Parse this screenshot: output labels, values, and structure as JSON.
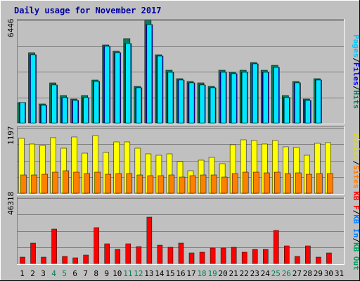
{
  "chart_data": {
    "type": "bar",
    "title": "Daily usage for November 2017",
    "categories": [
      "1",
      "2",
      "3",
      "4",
      "5",
      "6",
      "7",
      "8",
      "9",
      "10",
      "11",
      "12",
      "13",
      "14",
      "15",
      "16",
      "17",
      "18",
      "19",
      "20",
      "21",
      "22",
      "23",
      "24",
      "25",
      "26",
      "27",
      "28",
      "29",
      "30",
      "31"
    ],
    "weekend_categories": [
      "4",
      "5",
      "11",
      "12",
      "18",
      "19",
      "25",
      "26"
    ],
    "panels": [
      {
        "name": "top",
        "max_label": "6446",
        "ylim": [
          0,
          6446
        ],
        "legend": [
          "Pages",
          "Files",
          "Hits"
        ],
        "series": [
          {
            "name": "Hits",
            "color": "#00805c",
            "values": [
              1300,
              4400,
              1200,
              2500,
              1700,
              1500,
              1700,
              2700,
              4900,
              4500,
              5300,
              2300,
              6446,
              4300,
              3300,
              2800,
              2600,
              2500,
              2300,
              3300,
              3200,
              3300,
              3800,
              3300,
              3600,
              1700,
              2600,
              1500,
              2800,
              0,
              0
            ]
          },
          {
            "name": "Files",
            "color": "#0000ff",
            "values": [
              1300,
              4300,
              1100,
              2400,
              1600,
              1400,
              1600,
              2600,
              4800,
              4400,
              5000,
              2200,
              6200,
              4200,
              3200,
              2700,
              2500,
              2400,
              2200,
              3200,
              3100,
              3200,
              3700,
              3200,
              3500,
              1600,
              2500,
              1400,
              2700,
              0,
              0
            ]
          },
          {
            "name": "Pages",
            "color": "#00e8ff",
            "values": [
              1300,
              4300,
              1100,
              2400,
              1600,
              1400,
              1600,
              2600,
              4800,
              4400,
              5000,
              2200,
              6200,
              4200,
              3200,
              2700,
              2500,
              2400,
              2200,
              3200,
              3100,
              3200,
              3700,
              3200,
              3500,
              1600,
              2500,
              1400,
              2700,
              0,
              0
            ]
          }
        ]
      },
      {
        "name": "middle",
        "max_label": "1197",
        "ylim": [
          0,
          1197
        ],
        "legend": [
          "Visits",
          "Sites"
        ],
        "series": [
          {
            "name": "Visits",
            "color": "#ffff00",
            "values": [
              1000,
              900,
              880,
              1020,
              830,
              1030,
              740,
              1050,
              750,
              940,
              940,
              830,
              720,
              690,
              720,
              580,
              410,
              600,
              660,
              540,
              890,
              980,
              960,
              900,
              970,
              850,
              840,
              700,
              920,
              930,
              0
            ]
          },
          {
            "name": "Sites",
            "color": "#ff8000",
            "values": [
              340,
              340,
              350,
              380,
              410,
              390,
              360,
              380,
              350,
              360,
              360,
              340,
              320,
              320,
              330,
              300,
              320,
              340,
              330,
              300,
              360,
              380,
              380,
              370,
              380,
              360,
              370,
              350,
              360,
              360,
              0
            ]
          }
        ]
      },
      {
        "name": "bottom",
        "max_label": "46318",
        "ylim": [
          0,
          46318
        ],
        "legend": [
          "KB F",
          "KB In",
          "KB Out"
        ],
        "series": [
          {
            "name": "KB F",
            "color": "#ff0000",
            "values": [
              4500,
              14200,
              4500,
              24400,
              5000,
              4200,
              6000,
              25400,
              14000,
              9800,
              14100,
              12100,
              33000,
              13000,
              11700,
              14200,
              7500,
              8200,
              11000,
              10800,
              11500,
              8000,
              10000,
              10100,
              23500,
              12500,
              4900,
              12500,
              4600,
              7500,
              0
            ]
          }
        ]
      }
    ]
  }
}
